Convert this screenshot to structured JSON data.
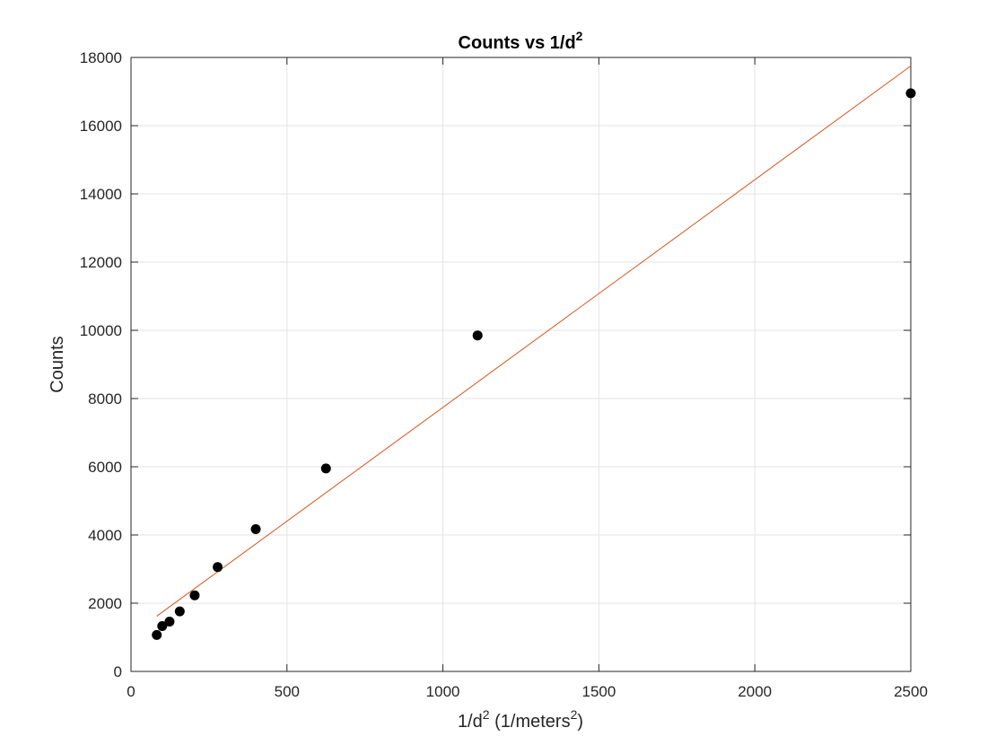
{
  "chart_data": {
    "type": "scatter",
    "title": "Counts vs 1/d",
    "title_superscript": "2",
    "xlabel_parts": [
      "1/d",
      "2",
      " (1/meters",
      "2",
      ")"
    ],
    "ylabel": "Counts",
    "xlim": [
      0,
      2500
    ],
    "ylim": [
      0,
      18000
    ],
    "xticks": [
      0,
      500,
      1000,
      1500,
      2000,
      2500
    ],
    "yticks": [
      0,
      2000,
      4000,
      6000,
      8000,
      10000,
      12000,
      14000,
      16000,
      18000
    ],
    "grid": true,
    "legend": "none",
    "series": [
      {
        "kind": "points",
        "color": "#000000",
        "x": [
          82.6,
          100,
          123.5,
          156.3,
          204.1,
          277.8,
          400,
          625,
          1111.1,
          2500
        ],
        "y": [
          1070,
          1330,
          1460,
          1760,
          2230,
          3060,
          4170,
          5950,
          9850,
          16950
        ]
      },
      {
        "kind": "fit-line",
        "color": "#d95319",
        "x": [
          82.6,
          2500
        ],
        "y": [
          1620,
          17750
        ]
      }
    ]
  }
}
